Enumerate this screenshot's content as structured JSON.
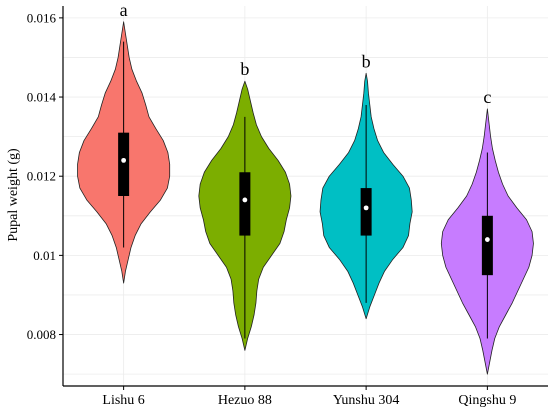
{
  "chart_data": {
    "type": "violin",
    "title": "",
    "xlabel": "",
    "ylabel": "Pupal weight (g)",
    "ylim": [
      0.0067,
      0.0163
    ],
    "yticks": [
      0.008,
      0.01,
      0.012,
      0.014,
      0.016
    ],
    "ytick_labels": [
      "0.008",
      "0.01",
      "0.012",
      "0.014",
      "0.016"
    ],
    "grid": true,
    "legend": "none",
    "categories": [
      "Lishu 6",
      "Hezuo 88",
      "Yunshu 304",
      "Qingshu 9"
    ],
    "colors": [
      "#F8766D",
      "#7CAE00",
      "#00BFC4",
      "#C77CFF"
    ],
    "significance": [
      "a",
      "b",
      "b",
      "c"
    ],
    "series": [
      {
        "name": "Lishu 6",
        "min": 0.0093,
        "max": 0.0159,
        "whisker_low": 0.0102,
        "whisker_high": 0.0154,
        "q1": 0.0115,
        "median": 0.0124,
        "q3": 0.0131,
        "density": [
          [
            0.0093,
            0.0
          ],
          [
            0.0096,
            0.04
          ],
          [
            0.0099,
            0.1
          ],
          [
            0.0102,
            0.16
          ],
          [
            0.0105,
            0.25
          ],
          [
            0.0108,
            0.38
          ],
          [
            0.0111,
            0.58
          ],
          [
            0.0114,
            0.8
          ],
          [
            0.0117,
            0.95
          ],
          [
            0.012,
            1.0
          ],
          [
            0.0123,
            1.0
          ],
          [
            0.0126,
            0.96
          ],
          [
            0.0129,
            0.86
          ],
          [
            0.0132,
            0.7
          ],
          [
            0.0135,
            0.55
          ],
          [
            0.0138,
            0.48
          ],
          [
            0.0141,
            0.4
          ],
          [
            0.0144,
            0.28
          ],
          [
            0.0147,
            0.18
          ],
          [
            0.015,
            0.12
          ],
          [
            0.0153,
            0.08
          ],
          [
            0.0156,
            0.04
          ],
          [
            0.0159,
            0.0
          ]
        ]
      },
      {
        "name": "Hezuo 88",
        "min": 0.0076,
        "max": 0.0144,
        "whisker_low": 0.0079,
        "whisker_high": 0.0135,
        "q1": 0.0105,
        "median": 0.0114,
        "q3": 0.0121,
        "density": [
          [
            0.0076,
            0.0
          ],
          [
            0.0079,
            0.06
          ],
          [
            0.0082,
            0.14
          ],
          [
            0.0085,
            0.2
          ],
          [
            0.0088,
            0.24
          ],
          [
            0.0091,
            0.26
          ],
          [
            0.0094,
            0.3
          ],
          [
            0.0097,
            0.4
          ],
          [
            0.01,
            0.58
          ],
          [
            0.0103,
            0.76
          ],
          [
            0.0106,
            0.85
          ],
          [
            0.0109,
            0.9
          ],
          [
            0.0112,
            0.97
          ],
          [
            0.0115,
            1.0
          ],
          [
            0.0118,
            0.97
          ],
          [
            0.0121,
            0.88
          ],
          [
            0.0124,
            0.72
          ],
          [
            0.0127,
            0.52
          ],
          [
            0.013,
            0.36
          ],
          [
            0.0133,
            0.25
          ],
          [
            0.0136,
            0.18
          ],
          [
            0.0139,
            0.12
          ],
          [
            0.0142,
            0.06
          ],
          [
            0.0144,
            0.0
          ]
        ]
      },
      {
        "name": "Yunshu 304",
        "min": 0.0084,
        "max": 0.0146,
        "whisker_low": 0.0088,
        "whisker_high": 0.0138,
        "q1": 0.0105,
        "median": 0.0112,
        "q3": 0.0117,
        "density": [
          [
            0.0084,
            0.0
          ],
          [
            0.0087,
            0.08
          ],
          [
            0.009,
            0.18
          ],
          [
            0.0093,
            0.28
          ],
          [
            0.0096,
            0.4
          ],
          [
            0.0099,
            0.58
          ],
          [
            0.0102,
            0.8
          ],
          [
            0.0105,
            0.92
          ],
          [
            0.0108,
            0.95
          ],
          [
            0.0111,
            1.0
          ],
          [
            0.0114,
            0.98
          ],
          [
            0.0117,
            0.94
          ],
          [
            0.012,
            0.8
          ],
          [
            0.0123,
            0.58
          ],
          [
            0.0126,
            0.38
          ],
          [
            0.0129,
            0.25
          ],
          [
            0.0132,
            0.17
          ],
          [
            0.0135,
            0.11
          ],
          [
            0.0138,
            0.08
          ],
          [
            0.0141,
            0.05
          ],
          [
            0.0144,
            0.03
          ],
          [
            0.0146,
            0.0
          ]
        ]
      },
      {
        "name": "Qingshu 9",
        "min": 0.007,
        "max": 0.0137,
        "whisker_low": 0.0079,
        "whisker_high": 0.0126,
        "q1": 0.0095,
        "median": 0.0104,
        "q3": 0.011,
        "density": [
          [
            0.007,
            0.0
          ],
          [
            0.0073,
            0.05
          ],
          [
            0.0076,
            0.1
          ],
          [
            0.0079,
            0.16
          ],
          [
            0.0082,
            0.26
          ],
          [
            0.0085,
            0.4
          ],
          [
            0.0088,
            0.54
          ],
          [
            0.0091,
            0.66
          ],
          [
            0.0094,
            0.78
          ],
          [
            0.0097,
            0.9
          ],
          [
            0.01,
            0.97
          ],
          [
            0.0103,
            1.0
          ],
          [
            0.0106,
            0.97
          ],
          [
            0.0109,
            0.85
          ],
          [
            0.0112,
            0.64
          ],
          [
            0.0115,
            0.45
          ],
          [
            0.0118,
            0.33
          ],
          [
            0.0121,
            0.24
          ],
          [
            0.0124,
            0.17
          ],
          [
            0.0127,
            0.11
          ],
          [
            0.013,
            0.07
          ],
          [
            0.0133,
            0.04
          ],
          [
            0.0137,
            0.0
          ]
        ]
      }
    ]
  }
}
